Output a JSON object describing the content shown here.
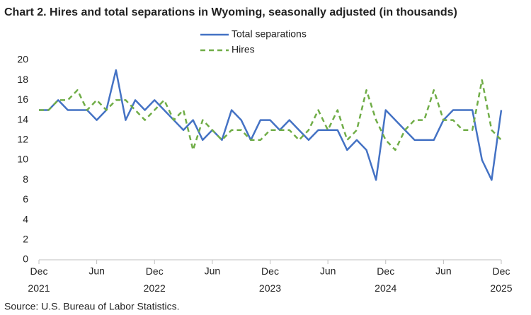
{
  "chart_data": {
    "type": "line",
    "title": "Chart 2. Hires and total separations in Wyoming, seasonally adjusted (in thousands)",
    "source": "Source: U.S. Bureau of Labor Statistics.",
    "categories": [
      "Dec 2021",
      null,
      null,
      null,
      null,
      null,
      "Jun",
      null,
      null,
      null,
      null,
      null,
      "Dec 2022",
      null,
      null,
      null,
      null,
      null,
      "Jun",
      null,
      null,
      null,
      null,
      null,
      "Dec 2023",
      null,
      null,
      null,
      null,
      null,
      "Jun",
      null,
      null,
      null,
      null,
      null,
      "Dec 2024",
      null,
      null,
      null,
      null,
      null,
      "Jun",
      null,
      null,
      null,
      null,
      null,
      "Dec 2025"
    ],
    "series": [
      {
        "name": "Total separations",
        "color": "#4472c4",
        "dash": false,
        "values": [
          15,
          15,
          16,
          15,
          15,
          15,
          14,
          15,
          19,
          14,
          16,
          15,
          16,
          15,
          14,
          13,
          14,
          12,
          13,
          12,
          15,
          14,
          12,
          14,
          14,
          13,
          14,
          13,
          12,
          13,
          13,
          13,
          11,
          12,
          11,
          8,
          15,
          14,
          13,
          12,
          12,
          12,
          14,
          15,
          15,
          15,
          10,
          8,
          15
        ]
      },
      {
        "name": "Hires",
        "color": "#70ad47",
        "dash": true,
        "values": [
          15,
          15,
          16,
          16,
          17,
          15,
          16,
          15,
          16,
          16,
          15,
          14,
          15,
          16,
          14,
          15,
          11,
          14,
          13,
          12,
          13,
          13,
          12,
          12,
          13,
          13,
          13,
          12,
          13,
          15,
          13,
          15,
          12,
          13,
          17,
          14,
          12,
          11,
          13,
          14,
          14,
          17,
          14,
          14,
          13,
          13,
          18,
          13,
          12
        ]
      }
    ],
    "ylim": [
      0,
      20
    ],
    "yticks": [
      0,
      2,
      4,
      6,
      8,
      10,
      12,
      14,
      16,
      18,
      20
    ],
    "grid": false,
    "legend": "top"
  }
}
